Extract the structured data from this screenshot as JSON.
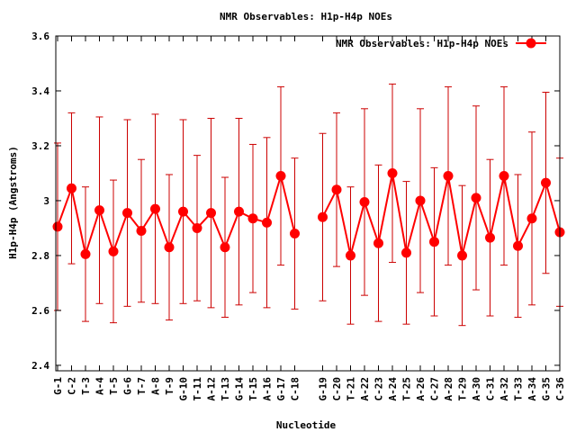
{
  "chart_data": {
    "type": "line",
    "title": "NMR Observables: H1p-H4p NOEs",
    "xlabel": "Nucleotide",
    "ylabel": "H1p-H4p (Angstroms)",
    "ylim": [
      2.38,
      3.6
    ],
    "yticks": [
      "2.4",
      "2.6",
      "2.8",
      "3",
      "3.2",
      "3.4",
      "3.6"
    ],
    "grid": false,
    "legend": "top-right",
    "error_bars": true,
    "colors": {
      "series": "#ff0000",
      "errorbar": "#cc0000",
      "axis": "#000000"
    },
    "categories": [
      "G-1",
      "C-2",
      "T-3",
      "A-4",
      "T-5",
      "G-6",
      "T-7",
      "A-8",
      "T-9",
      "G-10",
      "T-11",
      "A-12",
      "T-13",
      "G-14",
      "T-15",
      "A-16",
      "G-17",
      "C-18",
      "G-19",
      "C-20",
      "T-21",
      "A-22",
      "C-23",
      "A-24",
      "T-25",
      "A-26",
      "C-27",
      "A-28",
      "T-29",
      "A-30",
      "C-31",
      "A-32",
      "T-33",
      "A-34",
      "G-35",
      "C-36"
    ],
    "series": [
      {
        "name": "NMR Observables: H1p-H4p NOEs",
        "values": [
          2.905,
          3.045,
          2.805,
          2.965,
          2.815,
          2.955,
          2.89,
          2.97,
          2.83,
          2.96,
          2.9,
          2.955,
          2.83,
          2.96,
          2.935,
          2.92,
          3.09,
          2.88,
          2.94,
          3.04,
          2.8,
          2.995,
          2.845,
          3.1,
          2.81,
          3.0,
          2.85,
          3.09,
          2.8,
          3.01,
          2.865,
          3.09,
          2.835,
          2.935,
          3.065,
          2.885
        ],
        "errors": [
          0.305,
          0.275,
          0.245,
          0.34,
          0.26,
          0.34,
          0.26,
          0.345,
          0.265,
          0.335,
          0.265,
          0.345,
          0.255,
          0.34,
          0.27,
          0.31,
          0.325,
          0.275,
          0.305,
          0.28,
          0.25,
          0.34,
          0.285,
          0.325,
          0.26,
          0.335,
          0.27,
          0.325,
          0.255,
          0.335,
          0.285,
          0.325,
          0.26,
          0.315,
          0.33,
          0.27
        ]
      }
    ],
    "segments": [
      [
        0,
        17
      ],
      [
        18,
        35
      ]
    ]
  }
}
